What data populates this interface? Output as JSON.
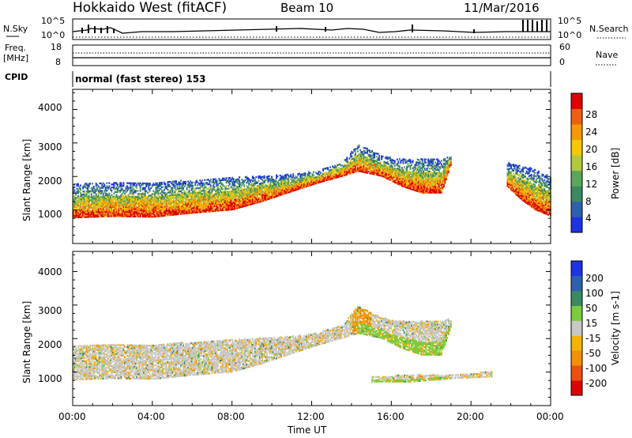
{
  "header": {
    "title": "Hokkaido West (fitACF)",
    "beam": "Beam 10",
    "date": "11/Mar/2016"
  },
  "noise_panel": {
    "left_label": "N.Sky",
    "right_label": "N.Search",
    "ticks_left": [
      "10^5",
      "10^0"
    ],
    "ticks_right": [
      "10^5",
      "10^0"
    ]
  },
  "freq_panel": {
    "left_label_1": "Freq.",
    "left_label_2": "[MHz]",
    "right_label": "Nave",
    "ticks_left": [
      "18",
      "8"
    ],
    "ticks_right": [
      "60",
      "0"
    ]
  },
  "cpid": {
    "label": "CPID",
    "text": "normal (fast stereo) 153"
  },
  "power_panel": {
    "ylabel": "Slant Range [km]",
    "yticks": [
      "1000",
      "2000",
      "3000",
      "4000"
    ],
    "colorbar_label": "Power [dB]",
    "colorbar_ticks": [
      "4",
      "8",
      "12",
      "16",
      "20",
      "24",
      "28"
    ],
    "colors": [
      "#1e32e6",
      "#2f5fb0",
      "#3a8a60",
      "#5aa75a",
      "#b4c83c",
      "#f5c800",
      "#f59a00",
      "#ee6010",
      "#e00000"
    ]
  },
  "velocity_panel": {
    "ylabel": "Slant Range [km]",
    "yticks": [
      "1000",
      "2000",
      "3000",
      "4000"
    ],
    "colorbar_label": "Velocity [m s-1]",
    "colorbar_ticks": [
      "-200",
      "-100",
      "-50",
      "-15",
      "15",
      "50",
      "100",
      "200"
    ],
    "colors": [
      "#e00000",
      "#ee5010",
      "#f59000",
      "#f5b400",
      "#c8c8c8",
      "#7ccc3c",
      "#3a8a60",
      "#2f5fb0",
      "#1e32e6"
    ]
  },
  "xaxis": {
    "label": "Time UT",
    "ticks": [
      "00:00",
      "04:00",
      "08:00",
      "12:00",
      "16:00",
      "20:00",
      "00:00"
    ]
  },
  "chart_data": [
    {
      "type": "heatmap",
      "name": "power",
      "xlabel": "Time UT",
      "ylabel": "Slant Range [km]",
      "xlim": [
        0,
        24
      ],
      "ylim": [
        0,
        4600
      ],
      "colorbar": {
        "label": "Power [dB]",
        "range": [
          0,
          32
        ],
        "ticks": [
          4,
          8,
          12,
          16,
          20,
          24,
          28
        ]
      },
      "echo_bands": [
        {
          "time_h": [
            0,
            2,
            4,
            6,
            8,
            9.5,
            11,
            12.3,
            13.5,
            14.3,
            15.5,
            16.5,
            17.5,
            18.5,
            19
          ],
          "range_km_low": [
            760,
            800,
            780,
            900,
            1000,
            1250,
            1550,
            1800,
            2000,
            2150,
            2000,
            1700,
            1500,
            1500,
            2400
          ],
          "range_km_high": [
            1750,
            1800,
            1800,
            1880,
            1950,
            2000,
            2050,
            2150,
            2400,
            2950,
            2600,
            2500,
            2500,
            2500,
            2600
          ]
        },
        {
          "time_h": [
            21.8,
            22.5,
            23.2,
            24
          ],
          "range_km_low": [
            1700,
            1300,
            1000,
            800
          ],
          "range_km_high": [
            2400,
            2300,
            2200,
            2000
          ]
        }
      ]
    },
    {
      "type": "heatmap",
      "name": "velocity",
      "xlabel": "Time UT",
      "ylabel": "Slant Range [km]",
      "xlim": [
        0,
        24
      ],
      "ylim": [
        0,
        4600
      ],
      "colorbar": {
        "label": "Velocity [m s-1]",
        "range": [
          -250,
          250
        ],
        "ticks": [
          -200,
          -100,
          -50,
          -15,
          15,
          50,
          100,
          200
        ]
      },
      "echo_bands": [
        {
          "time_h": [
            0,
            2,
            4,
            6,
            8,
            9.5,
            11,
            12.3,
            13.5,
            14.3,
            15.5,
            16.5,
            17.5,
            18.5,
            19
          ],
          "range_km_low": [
            760,
            800,
            780,
            900,
            1000,
            1250,
            1550,
            1800,
            2000,
            2150,
            2000,
            1700,
            1500,
            1500,
            2400
          ],
          "range_km_high": [
            1750,
            1800,
            1800,
            1880,
            1950,
            2000,
            2050,
            2150,
            2400,
            2950,
            2600,
            2500,
            2500,
            2500,
            2600
          ]
        },
        {
          "time_h": [
            15,
            17,
            19,
            21
          ],
          "range_km_low": [
            700,
            700,
            800,
            850
          ],
          "range_km_high": [
            850,
            900,
            900,
            1000
          ]
        }
      ]
    }
  ]
}
